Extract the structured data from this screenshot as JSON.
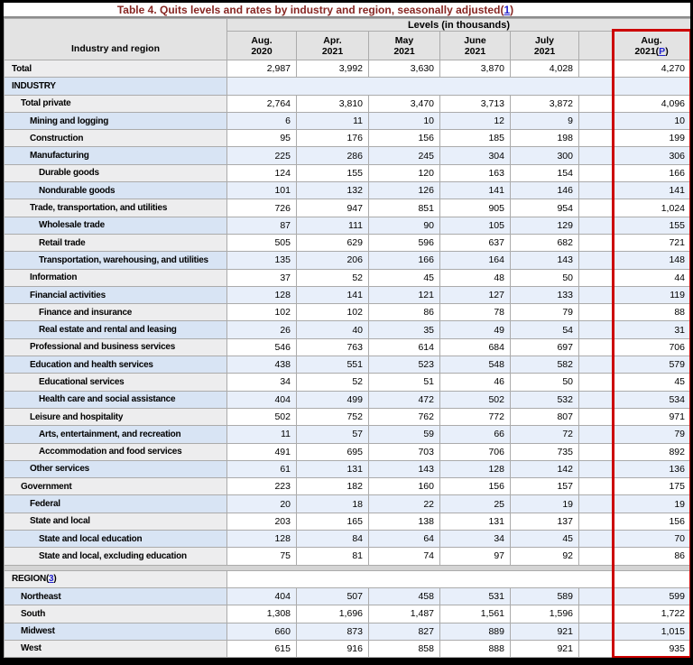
{
  "title": {
    "text": "Table 4. Quits levels and rates by industry and region, seasonally adjusted",
    "footnote_open": "(",
    "footnote": "1",
    "footnote_close": ")"
  },
  "table": {
    "stub_header": "Industry and region",
    "group_header": "Levels (in thousands)",
    "columns": [
      {
        "line1": "Aug.",
        "line2": "2020"
      },
      {
        "line1": "Apr.",
        "line2": "2021"
      },
      {
        "line1": "May",
        "line2": "2021"
      },
      {
        "line1": "June",
        "line2": "2021"
      },
      {
        "line1": "July",
        "line2": "2021"
      },
      {
        "line1": "Aug.",
        "line2": "2021",
        "fn_open": "(",
        "footnote": "P",
        "fn_close": ")"
      }
    ],
    "rows": [
      {
        "label": "Total",
        "indent": 0,
        "values": [
          "2,987",
          "3,992",
          "3,630",
          "3,870",
          "4,028",
          "4,270"
        ]
      },
      {
        "label": "INDUSTRY",
        "indent": 0,
        "type": "section"
      },
      {
        "label": "Total private",
        "indent": 1,
        "values": [
          "2,764",
          "3,810",
          "3,470",
          "3,713",
          "3,872",
          "4,096"
        ]
      },
      {
        "label": "Mining and logging",
        "indent": 2,
        "values": [
          "6",
          "11",
          "10",
          "12",
          "9",
          "10"
        ]
      },
      {
        "label": "Construction",
        "indent": 2,
        "values": [
          "95",
          "176",
          "156",
          "185",
          "198",
          "199"
        ]
      },
      {
        "label": "Manufacturing",
        "indent": 2,
        "values": [
          "225",
          "286",
          "245",
          "304",
          "300",
          "306"
        ]
      },
      {
        "label": "Durable goods",
        "indent": 3,
        "values": [
          "124",
          "155",
          "120",
          "163",
          "154",
          "166"
        ]
      },
      {
        "label": "Nondurable goods",
        "indent": 3,
        "values": [
          "101",
          "132",
          "126",
          "141",
          "146",
          "141"
        ]
      },
      {
        "label": "Trade, transportation, and utilities",
        "indent": 2,
        "values": [
          "726",
          "947",
          "851",
          "905",
          "954",
          "1,024"
        ]
      },
      {
        "label": "Wholesale trade",
        "indent": 3,
        "values": [
          "87",
          "111",
          "90",
          "105",
          "129",
          "155"
        ]
      },
      {
        "label": "Retail trade",
        "indent": 3,
        "values": [
          "505",
          "629",
          "596",
          "637",
          "682",
          "721"
        ]
      },
      {
        "label": "Transportation, warehousing, and utilities",
        "indent": 3,
        "values": [
          "135",
          "206",
          "166",
          "164",
          "143",
          "148"
        ]
      },
      {
        "label": "Information",
        "indent": 2,
        "values": [
          "37",
          "52",
          "45",
          "48",
          "50",
          "44"
        ]
      },
      {
        "label": "Financial activities",
        "indent": 2,
        "values": [
          "128",
          "141",
          "121",
          "127",
          "133",
          "119"
        ]
      },
      {
        "label": "Finance and insurance",
        "indent": 3,
        "values": [
          "102",
          "102",
          "86",
          "78",
          "79",
          "88"
        ]
      },
      {
        "label": "Real estate and rental and leasing",
        "indent": 3,
        "values": [
          "26",
          "40",
          "35",
          "49",
          "54",
          "31"
        ]
      },
      {
        "label": "Professional and business services",
        "indent": 2,
        "values": [
          "546",
          "763",
          "614",
          "684",
          "697",
          "706"
        ]
      },
      {
        "label": "Education and health services",
        "indent": 2,
        "values": [
          "438",
          "551",
          "523",
          "548",
          "582",
          "579"
        ]
      },
      {
        "label": "Educational services",
        "indent": 3,
        "values": [
          "34",
          "52",
          "51",
          "46",
          "50",
          "45"
        ]
      },
      {
        "label": "Health care and social assistance",
        "indent": 3,
        "values": [
          "404",
          "499",
          "472",
          "502",
          "532",
          "534"
        ]
      },
      {
        "label": "Leisure and hospitality",
        "indent": 2,
        "values": [
          "502",
          "752",
          "762",
          "772",
          "807",
          "971"
        ]
      },
      {
        "label": "Arts, entertainment, and recreation",
        "indent": 3,
        "values": [
          "11",
          "57",
          "59",
          "66",
          "72",
          "79"
        ]
      },
      {
        "label": "Accommodation and food services",
        "indent": 3,
        "values": [
          "491",
          "695",
          "703",
          "706",
          "735",
          "892"
        ]
      },
      {
        "label": "Other services",
        "indent": 2,
        "values": [
          "61",
          "131",
          "143",
          "128",
          "142",
          "136"
        ]
      },
      {
        "label": "Government",
        "indent": 1,
        "values": [
          "223",
          "182",
          "160",
          "156",
          "157",
          "175"
        ]
      },
      {
        "label": "Federal",
        "indent": 2,
        "values": [
          "20",
          "18",
          "22",
          "25",
          "19",
          "19"
        ]
      },
      {
        "label": "State and local",
        "indent": 2,
        "values": [
          "203",
          "165",
          "138",
          "131",
          "137",
          "156"
        ]
      },
      {
        "label": "State and local education",
        "indent": 3,
        "values": [
          "128",
          "84",
          "64",
          "34",
          "45",
          "70"
        ]
      },
      {
        "label": "State and local, excluding education",
        "indent": 3,
        "values": [
          "75",
          "81",
          "74",
          "97",
          "92",
          "86"
        ]
      },
      {
        "type": "separator"
      },
      {
        "label": "REGION",
        "indent": 0,
        "type": "section",
        "footnote": "3"
      },
      {
        "label": "Northeast",
        "indent": 1,
        "values": [
          "404",
          "507",
          "458",
          "531",
          "589",
          "599"
        ]
      },
      {
        "label": "South",
        "indent": 1,
        "values": [
          "1,308",
          "1,696",
          "1,487",
          "1,561",
          "1,596",
          "1,722"
        ]
      },
      {
        "label": "Midwest",
        "indent": 1,
        "values": [
          "660",
          "873",
          "827",
          "889",
          "921",
          "1,015"
        ]
      },
      {
        "label": "West",
        "indent": 1,
        "values": [
          "615",
          "916",
          "858",
          "888",
          "921",
          "935"
        ]
      }
    ]
  },
  "colors": {
    "title_maroon": "#872622",
    "link_blue": "#2222cc",
    "highlight_red": "#cc0000",
    "header_gray": "#e3e3e3",
    "label_gray": "#ededee",
    "row_blue_label": "#d8e4f4",
    "row_blue_data": "#e8effa",
    "separator_gray": "#d4d4d4",
    "border_gray": "#ababab"
  }
}
